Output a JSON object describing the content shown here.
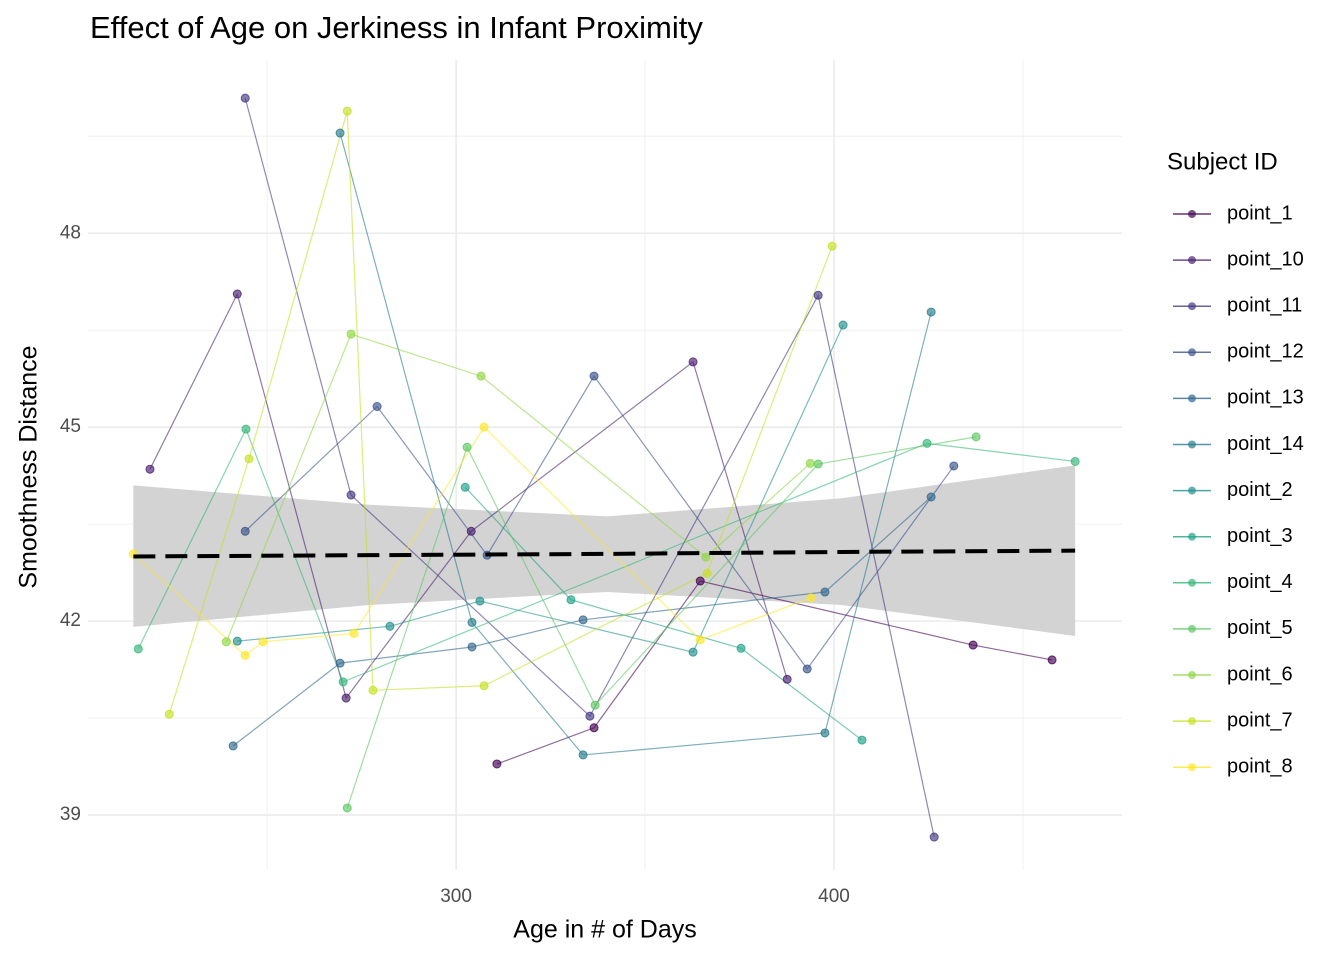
{
  "chart_data": {
    "type": "line",
    "title": "Effect of Age on Jerkiness in Infant Proximity",
    "x_label": "Age in # of Days",
    "y_label": "Smoothness Distance",
    "legend_title": "Subject ID",
    "xlim": [
      202.6,
      476.2
    ],
    "ylim": [
      38.15,
      50.68
    ],
    "xticks": [
      300,
      400
    ],
    "yticks": [
      39,
      42,
      45,
      48
    ],
    "x_minor_ticks": [
      250,
      350,
      450
    ],
    "y_minor_ticks": [
      40.5,
      43.5,
      46.5,
      49.5
    ],
    "grid": true,
    "legend_position": "right",
    "series": [
      {
        "name": "point_1",
        "color": "#440154",
        "x": [
          310.8,
          336.5,
          364.6,
          436.8,
          457.7
        ],
        "values": [
          39.79,
          40.35,
          42.62,
          41.63,
          41.4
        ]
      },
      {
        "name": "point_10",
        "color": "#481F70",
        "x": [
          219.0,
          242.1,
          270.9,
          304.0,
          362.7,
          387.6
        ],
        "values": [
          44.35,
          47.06,
          40.81,
          43.39,
          46.01,
          41.1
        ]
      },
      {
        "name": "point_11",
        "color": "#443983",
        "x": [
          244.2,
          272.2,
          335.4,
          395.8,
          426.5
        ],
        "values": [
          50.09,
          43.95,
          40.53,
          47.04,
          38.66
        ]
      },
      {
        "name": "point_12",
        "color": "#3B528B",
        "x": [
          244.2,
          279.1,
          308.2,
          336.5,
          392.9,
          431.7
        ],
        "values": [
          43.39,
          45.32,
          43.02,
          45.79,
          41.26,
          44.4
        ]
      },
      {
        "name": "point_13",
        "color": "#31688E",
        "x": [
          241.0,
          269.3,
          304.2,
          333.6,
          397.6,
          425.7
        ],
        "values": [
          40.07,
          41.35,
          41.6,
          42.02,
          42.45,
          43.92
        ]
      },
      {
        "name": "point_14",
        "color": "#287C8E",
        "x": [
          269.3,
          304.2,
          333.6,
          397.6,
          425.7
        ],
        "values": [
          49.55,
          41.98,
          39.93,
          40.27,
          46.78
        ]
      },
      {
        "name": "point_2",
        "color": "#21908C",
        "x": [
          242.1,
          282.5,
          306.3,
          362.7,
          402.4
        ],
        "values": [
          41.69,
          41.92,
          42.31,
          41.52,
          46.58
        ]
      },
      {
        "name": "point_3",
        "color": "#20A386",
        "x": [
          302.4,
          330.4,
          375.4,
          407.4
        ],
        "values": [
          44.07,
          42.33,
          41.58,
          40.16
        ]
      },
      {
        "name": "point_4",
        "color": "#35B779",
        "x": [
          215.9,
          244.4,
          270.1,
          424.6,
          463.8
        ],
        "values": [
          41.57,
          44.97,
          41.06,
          44.75,
          44.47
        ]
      },
      {
        "name": "point_5",
        "color": "#5DC863",
        "x": [
          271.2,
          302.9,
          336.8,
          395.8,
          437.6
        ],
        "values": [
          39.11,
          44.69,
          40.7,
          44.43,
          44.85
        ]
      },
      {
        "name": "point_6",
        "color": "#8FD744",
        "x": [
          239.2,
          272.2,
          306.6,
          366.1,
          393.7
        ],
        "values": [
          41.68,
          46.44,
          45.79,
          42.99,
          44.44
        ]
      },
      {
        "name": "point_7",
        "color": "#C7E020",
        "x": [
          224.1,
          245.2,
          271.2,
          278.0,
          307.4,
          366.4,
          399.5
        ],
        "values": [
          40.56,
          44.51,
          49.89,
          40.93,
          41.0,
          42.74,
          47.8
        ]
      },
      {
        "name": "point_8",
        "color": "#FDE725",
        "x": [
          214.6,
          244.2,
          248.9,
          273.0,
          307.4,
          364.6,
          393.9
        ],
        "values": [
          43.04,
          41.47,
          41.68,
          41.81,
          45.0,
          41.71,
          42.36
        ]
      }
    ],
    "smooth": {
      "x": [
        214.6,
        277,
        340,
        402,
        463.8
      ],
      "fit": [
        43.0,
        43.02,
        43.04,
        43.07,
        43.09
      ],
      "lower": [
        41.91,
        42.25,
        42.45,
        42.25,
        41.77
      ],
      "upper": [
        44.1,
        43.8,
        43.62,
        43.9,
        44.41
      ],
      "color": "#000000",
      "band_color": "#d3d3d3"
    }
  }
}
